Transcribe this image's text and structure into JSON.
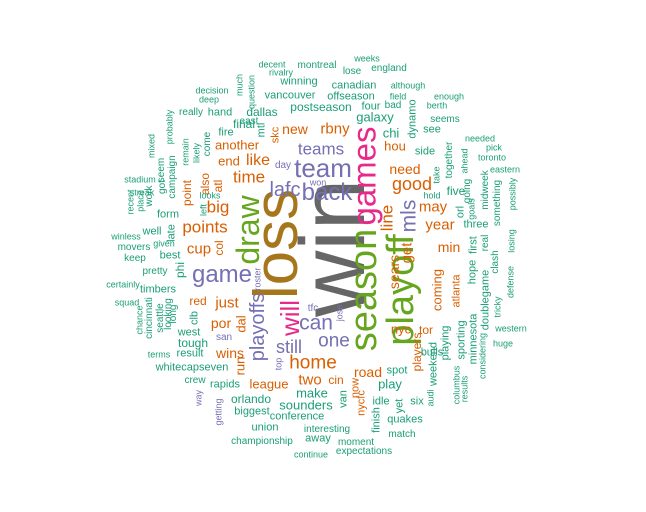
{
  "colors": {
    "teal": "#1b9e77",
    "orange": "#d95f02",
    "purple": "#7570b3",
    "magenta": "#e7298a",
    "green": "#66a61e",
    "gold": "#e6ab02",
    "brown": "#a6761d",
    "gray": "#666666"
  },
  "words": [
    {
      "id": "win",
      "text": "win",
      "color": "gray"
    },
    {
      "id": "loss",
      "text": "loss",
      "color": "brown"
    },
    {
      "id": "season",
      "text": "season",
      "color": "green"
    },
    {
      "id": "playoff",
      "text": "playoff",
      "color": "green"
    },
    {
      "id": "games",
      "text": "games",
      "color": "magenta"
    },
    {
      "id": "draw",
      "text": "draw",
      "color": "green"
    },
    {
      "id": "will",
      "text": "will",
      "color": "magenta"
    },
    {
      "id": "team",
      "text": "team",
      "color": "purple"
    },
    {
      "id": "game",
      "text": "game",
      "color": "purple"
    },
    {
      "id": "back",
      "text": "back",
      "color": "purple"
    },
    {
      "id": "lafc",
      "text": "lafc",
      "color": "purple"
    },
    {
      "id": "mls",
      "text": "mls",
      "color": "purple"
    },
    {
      "id": "can",
      "text": "can",
      "color": "purple"
    },
    {
      "id": "one",
      "text": "one",
      "color": "purple"
    },
    {
      "id": "teams",
      "text": "teams",
      "color": "purple"
    },
    {
      "id": "playoffs",
      "text": "playoffs",
      "color": "purple"
    },
    {
      "id": "home",
      "text": "home",
      "color": "orange"
    },
    {
      "id": "still",
      "text": "still",
      "color": "purple"
    },
    {
      "id": "good",
      "text": "good",
      "color": "orange"
    },
    {
      "id": "line",
      "text": "line",
      "color": "orange"
    },
    {
      "id": "points",
      "text": "points",
      "color": "orange"
    },
    {
      "id": "big",
      "text": "big",
      "color": "orange"
    },
    {
      "id": "time",
      "text": "time",
      "color": "orange"
    },
    {
      "id": "like",
      "text": "like",
      "color": "orange"
    },
    {
      "id": "new",
      "text": "new",
      "color": "orange"
    },
    {
      "id": "rbny",
      "text": "rbny",
      "color": "orange"
    },
    {
      "id": "year",
      "text": "year",
      "color": "orange"
    },
    {
      "id": "may",
      "text": "may",
      "color": "orange"
    },
    {
      "id": "just",
      "text": "just",
      "color": "orange"
    },
    {
      "id": "cup",
      "text": "cup",
      "color": "orange"
    },
    {
      "id": "two",
      "text": "two",
      "color": "orange"
    },
    {
      "id": "get",
      "text": "get",
      "color": "orange"
    },
    {
      "id": "sears",
      "text": "sears",
      "color": "orange"
    },
    {
      "id": "need",
      "text": "need",
      "color": "orange"
    },
    {
      "id": "min",
      "text": "min",
      "color": "orange"
    },
    {
      "id": "road",
      "text": "road",
      "color": "orange"
    },
    {
      "id": "coming",
      "text": "coming",
      "color": "orange"
    },
    {
      "id": "por",
      "text": "por",
      "color": "orange"
    },
    {
      "id": "wins",
      "text": "wins",
      "color": "orange"
    },
    {
      "id": "dal",
      "text": "dal",
      "color": "orange"
    },
    {
      "id": "run",
      "text": "run",
      "color": "orange"
    },
    {
      "id": "another",
      "text": "another",
      "color": "orange"
    },
    {
      "id": "end",
      "text": "end",
      "color": "orange"
    },
    {
      "id": "atl",
      "text": "atl",
      "color": "orange"
    },
    {
      "id": "col",
      "text": "col",
      "color": "orange"
    },
    {
      "id": "point",
      "text": "point",
      "color": "orange"
    },
    {
      "id": "also",
      "text": "also",
      "color": "orange"
    },
    {
      "id": "red",
      "text": "red",
      "color": "orange"
    },
    {
      "id": "league",
      "text": "league",
      "color": "orange"
    },
    {
      "id": "hou",
      "text": "hou",
      "color": "orange"
    },
    {
      "id": "players",
      "text": "players",
      "color": "orange"
    },
    {
      "id": "nycfc",
      "text": "nycfc",
      "color": "orange"
    },
    {
      "id": "nyc",
      "text": "nyc",
      "color": "orange"
    },
    {
      "id": "tor",
      "text": "tor",
      "color": "orange"
    },
    {
      "id": "now",
      "text": "now",
      "color": "orange"
    },
    {
      "id": "cin",
      "text": "cin",
      "color": "orange"
    },
    {
      "id": "atlanta",
      "text": "atlanta",
      "color": "orange"
    },
    {
      "id": "skc",
      "text": "skc",
      "color": "orange"
    },
    {
      "id": "sounders",
      "text": "sounders",
      "color": "teal"
    },
    {
      "id": "make",
      "text": "make",
      "color": "teal"
    },
    {
      "id": "postseason",
      "text": "postseason",
      "color": "teal"
    },
    {
      "id": "galaxy",
      "text": "galaxy",
      "color": "teal"
    },
    {
      "id": "chi",
      "text": "chi",
      "color": "teal"
    },
    {
      "id": "dynamo",
      "text": "dynamo",
      "color": "teal"
    },
    {
      "id": "side",
      "text": "side",
      "color": "teal"
    },
    {
      "id": "five",
      "text": "five",
      "color": "teal"
    },
    {
      "id": "three",
      "text": "three",
      "color": "teal"
    },
    {
      "id": "first",
      "text": "first",
      "color": "teal"
    },
    {
      "id": "hope",
      "text": "hope",
      "color": "teal"
    },
    {
      "id": "doublegame",
      "text": "doublegame",
      "color": "teal"
    },
    {
      "id": "sporting",
      "text": "sporting",
      "color": "teal"
    },
    {
      "id": "minnesota",
      "text": "minnesota",
      "color": "teal"
    },
    {
      "id": "playing",
      "text": "playing",
      "color": "teal"
    },
    {
      "id": "weekend",
      "text": "weekend",
      "color": "teal"
    },
    {
      "id": "bulls",
      "text": "bulls",
      "color": "teal"
    },
    {
      "id": "play",
      "text": "play",
      "color": "teal"
    },
    {
      "id": "spot",
      "text": "spot",
      "color": "teal"
    },
    {
      "id": "idle",
      "text": "idle",
      "color": "teal"
    },
    {
      "id": "yet",
      "text": "yet",
      "color": "teal"
    },
    {
      "id": "quakes",
      "text": "quakes",
      "color": "teal"
    },
    {
      "id": "six",
      "text": "six",
      "color": "teal"
    },
    {
      "id": "finish",
      "text": "finish",
      "color": "teal"
    },
    {
      "id": "match",
      "text": "match",
      "color": "teal"
    },
    {
      "id": "van",
      "text": "van",
      "color": "teal"
    },
    {
      "id": "conference",
      "text": "conference",
      "color": "teal"
    },
    {
      "id": "interesting",
      "text": "interesting",
      "color": "teal"
    },
    {
      "id": "away",
      "text": "away",
      "color": "teal"
    },
    {
      "id": "moment",
      "text": "moment",
      "color": "teal"
    },
    {
      "id": "expectations",
      "text": "expectations",
      "color": "teal"
    },
    {
      "id": "continue",
      "text": "continue",
      "color": "teal"
    },
    {
      "id": "championship",
      "text": "championship",
      "color": "teal"
    },
    {
      "id": "union",
      "text": "union",
      "color": "teal"
    },
    {
      "id": "biggest",
      "text": "biggest",
      "color": "teal"
    },
    {
      "id": "orlando",
      "text": "orlando",
      "color": "teal"
    },
    {
      "id": "rapids",
      "text": "rapids",
      "color": "teal"
    },
    {
      "id": "crew",
      "text": "crew",
      "color": "teal"
    },
    {
      "id": "whitecapseven",
      "text": "whitecapseven",
      "color": "teal"
    },
    {
      "id": "result",
      "text": "result",
      "color": "teal"
    },
    {
      "id": "terms",
      "text": "terms",
      "color": "teal"
    },
    {
      "id": "tough",
      "text": "tough",
      "color": "teal"
    },
    {
      "id": "west",
      "text": "west",
      "color": "teal"
    },
    {
      "id": "timbers",
      "text": "timbers",
      "color": "teal"
    },
    {
      "id": "phi",
      "text": "phi",
      "color": "teal"
    },
    {
      "id": "clb",
      "text": "clb",
      "color": "teal"
    },
    {
      "id": "long",
      "text": "long",
      "color": "teal"
    },
    {
      "id": "looking",
      "text": "looking",
      "color": "teal"
    },
    {
      "id": "cincinnati",
      "text": "cincinnati",
      "color": "teal"
    },
    {
      "id": "seattle",
      "text": "seattle",
      "color": "teal"
    },
    {
      "id": "chance",
      "text": "chance",
      "color": "teal"
    },
    {
      "id": "squad",
      "text": "squad",
      "color": "teal"
    },
    {
      "id": "certainly",
      "text": "certainly",
      "color": "teal"
    },
    {
      "id": "pretty",
      "text": "pretty",
      "color": "teal"
    },
    {
      "id": "keep",
      "text": "keep",
      "color": "teal"
    },
    {
      "id": "movers",
      "text": "movers",
      "color": "teal"
    },
    {
      "id": "winless",
      "text": "winless",
      "color": "teal"
    },
    {
      "id": "best",
      "text": "best",
      "color": "teal"
    },
    {
      "id": "given",
      "text": "given",
      "color": "teal"
    },
    {
      "id": "well",
      "text": "well",
      "color": "teal"
    },
    {
      "id": "late",
      "text": "late",
      "color": "teal"
    },
    {
      "id": "form",
      "text": "form",
      "color": "teal"
    },
    {
      "id": "work",
      "text": "work",
      "color": "teal"
    },
    {
      "id": "place",
      "text": "place",
      "color": "teal"
    },
    {
      "id": "recent",
      "text": "recent",
      "color": "teal"
    },
    {
      "id": "streak",
      "text": "streak",
      "color": "teal"
    },
    {
      "id": "stadium",
      "text": "stadium",
      "color": "teal"
    },
    {
      "id": "mixed",
      "text": "mixed",
      "color": "teal"
    },
    {
      "id": "probably",
      "text": "probably",
      "color": "teal"
    },
    {
      "id": "seem",
      "text": "seem",
      "color": "teal"
    },
    {
      "id": "got",
      "text": "got",
      "color": "teal"
    },
    {
      "id": "campaign",
      "text": "campaign",
      "color": "teal"
    },
    {
      "id": "remain",
      "text": "remain",
      "color": "teal"
    },
    {
      "id": "likely",
      "text": "likely",
      "color": "teal"
    },
    {
      "id": "come",
      "text": "come",
      "color": "teal"
    },
    {
      "id": "fire",
      "text": "fire",
      "color": "teal"
    },
    {
      "id": "hand",
      "text": "hand",
      "color": "teal"
    },
    {
      "id": "really",
      "text": "really",
      "color": "teal"
    },
    {
      "id": "deep",
      "text": "deep",
      "color": "teal"
    },
    {
      "id": "decision",
      "text": "decision",
      "color": "teal"
    },
    {
      "id": "looks",
      "text": "looks",
      "color": "teal"
    },
    {
      "id": "left",
      "text": "left",
      "color": "teal"
    },
    {
      "id": "east",
      "text": "east",
      "color": "teal"
    },
    {
      "id": "much",
      "text": "much",
      "color": "teal"
    },
    {
      "id": "question",
      "text": "question",
      "color": "teal"
    },
    {
      "id": "final",
      "text": "final",
      "color": "teal"
    },
    {
      "id": "mtl",
      "text": "mtl",
      "color": "teal"
    },
    {
      "id": "dallas",
      "text": "dallas",
      "color": "teal"
    },
    {
      "id": "vancouver",
      "text": "vancouver",
      "color": "teal"
    },
    {
      "id": "winning",
      "text": "winning",
      "color": "teal"
    },
    {
      "id": "rivalry",
      "text": "rivalry",
      "color": "teal"
    },
    {
      "id": "decent",
      "text": "decent",
      "color": "teal"
    },
    {
      "id": "montreal",
      "text": "montreal",
      "color": "teal"
    },
    {
      "id": "lose",
      "text": "lose",
      "color": "teal"
    },
    {
      "id": "weeks",
      "text": "weeks",
      "color": "teal"
    },
    {
      "id": "england",
      "text": "england",
      "color": "teal"
    },
    {
      "id": "canadian",
      "text": "canadian",
      "color": "teal"
    },
    {
      "id": "offseason",
      "text": "offseason",
      "color": "teal"
    },
    {
      "id": "although",
      "text": "although",
      "color": "teal"
    },
    {
      "id": "four",
      "text": "four",
      "color": "teal"
    },
    {
      "id": "bad",
      "text": "bad",
      "color": "teal"
    },
    {
      "id": "field",
      "text": "field",
      "color": "teal"
    },
    {
      "id": "enough",
      "text": "enough",
      "color": "teal"
    },
    {
      "id": "berth",
      "text": "berth",
      "color": "teal"
    },
    {
      "id": "seems",
      "text": "seems",
      "color": "teal"
    },
    {
      "id": "see",
      "text": "see",
      "color": "teal"
    },
    {
      "id": "together",
      "text": "together",
      "color": "teal"
    },
    {
      "id": "ahead",
      "text": "ahead",
      "color": "teal"
    },
    {
      "id": "needed",
      "text": "needed",
      "color": "teal"
    },
    {
      "id": "pick",
      "text": "pick",
      "color": "teal"
    },
    {
      "id": "toronto",
      "text": "toronto",
      "color": "teal"
    },
    {
      "id": "eastern",
      "text": "eastern",
      "color": "teal"
    },
    {
      "id": "take",
      "text": "take",
      "color": "teal"
    },
    {
      "id": "going",
      "text": "going",
      "color": "teal"
    },
    {
      "id": "hold",
      "text": "hold",
      "color": "teal"
    },
    {
      "id": "goals",
      "text": "goals",
      "color": "teal"
    },
    {
      "id": "midweek",
      "text": "midweek",
      "color": "teal"
    },
    {
      "id": "something",
      "text": "something",
      "color": "teal"
    },
    {
      "id": "possibly",
      "text": "possibly",
      "color": "teal"
    },
    {
      "id": "losing",
      "text": "losing",
      "color": "teal"
    },
    {
      "id": "clash",
      "text": "clash",
      "color": "teal"
    },
    {
      "id": "real",
      "text": "real",
      "color": "teal"
    },
    {
      "id": "defense",
      "text": "defense",
      "color": "teal"
    },
    {
      "id": "tricky",
      "text": "tricky",
      "color": "teal"
    },
    {
      "id": "western",
      "text": "western",
      "color": "teal"
    },
    {
      "id": "huge",
      "text": "huge",
      "color": "teal"
    },
    {
      "id": "considering",
      "text": "considering",
      "color": "teal"
    },
    {
      "id": "columbus",
      "text": "columbus",
      "color": "teal"
    },
    {
      "id": "results",
      "text": "results",
      "color": "teal"
    },
    {
      "id": "audi",
      "text": "audi",
      "color": "teal"
    },
    {
      "id": "orl",
      "text": "orl",
      "color": "teal"
    },
    {
      "id": "day",
      "text": "day",
      "color": "purple"
    },
    {
      "id": "won",
      "text": "won",
      "color": "purple"
    },
    {
      "id": "tfc",
      "text": "tfc",
      "color": "purple"
    },
    {
      "id": "jose",
      "text": "jose",
      "color": "purple"
    },
    {
      "id": "roster",
      "text": "roster",
      "color": "purple"
    },
    {
      "id": "top",
      "text": "top",
      "color": "purple"
    },
    {
      "id": "san",
      "text": "san",
      "color": "purple"
    },
    {
      "id": "way",
      "text": "way",
      "color": "purple"
    },
    {
      "id": "getting",
      "text": "getting",
      "color": "purple"
    }
  ]
}
